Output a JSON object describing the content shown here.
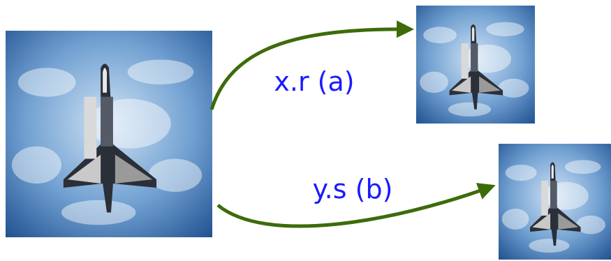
{
  "edges": [
    {
      "label": "x.r (a)"
    },
    {
      "label": "y.s (b)"
    }
  ]
}
